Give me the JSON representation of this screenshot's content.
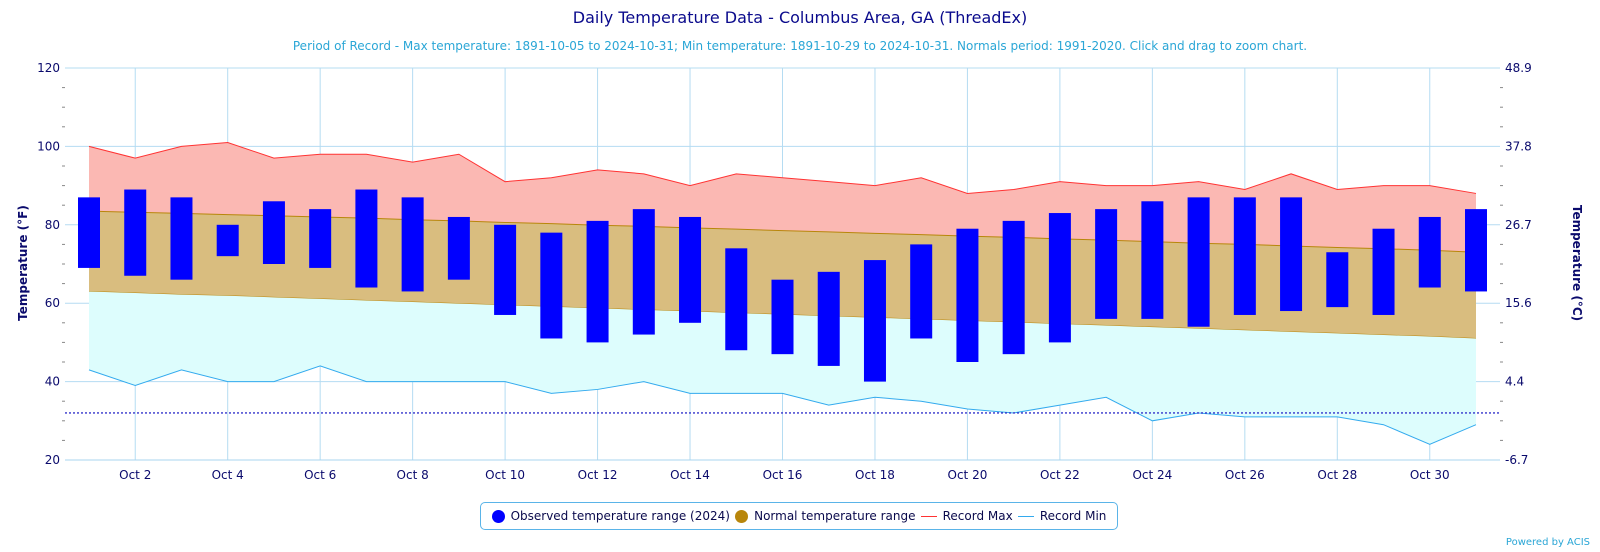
{
  "chart_data": {
    "type": "bar",
    "title": "Daily Temperature Data - Columbus Area, GA (ThreadEx)",
    "subtitle": "Period of Record - Max temperature: 1891-10-05 to 2024-10-31; Min temperature: 1891-10-29 to 2024-10-31. Normals period: 1991-2020. Click and drag to zoom chart.",
    "ylabel": "Temperature (°F)",
    "y2label": "Temperature (°C)",
    "ylim": [
      20,
      120
    ],
    "y_ticks": [
      20,
      40,
      60,
      80,
      100,
      120
    ],
    "y2_ticks": [
      "-6.7",
      "4.4",
      "15.6",
      "26.7",
      "37.8",
      "48.9"
    ],
    "x_tick_labels": [
      "Oct 2",
      "Oct 4",
      "Oct 6",
      "Oct 8",
      "Oct 10",
      "Oct 12",
      "Oct 14",
      "Oct 16",
      "Oct 18",
      "Oct 20",
      "Oct 22",
      "Oct 24",
      "Oct 26",
      "Oct 28",
      "Oct 30"
    ],
    "x_tick_days": [
      2,
      4,
      6,
      8,
      10,
      12,
      14,
      16,
      18,
      20,
      22,
      24,
      26,
      28,
      30
    ],
    "days": [
      1,
      2,
      3,
      4,
      5,
      6,
      7,
      8,
      9,
      10,
      11,
      12,
      13,
      14,
      15,
      16,
      17,
      18,
      19,
      20,
      21,
      22,
      23,
      24,
      25,
      26,
      27,
      28,
      29,
      30,
      31
    ],
    "freezing_line": 32,
    "grid": true,
    "legend_position": "bottom-center",
    "series": [
      {
        "name": "Observed temperature range (2024)",
        "color": "#0000ff",
        "low": [
          69,
          67,
          66,
          72,
          70,
          69,
          64,
          63,
          66,
          57,
          51,
          50,
          52,
          55,
          48,
          47,
          44,
          40,
          51,
          45,
          47,
          50,
          56,
          56,
          54,
          57,
          58,
          59,
          57,
          64,
          63
        ],
        "high": [
          87,
          89,
          87,
          80,
          86,
          84,
          89,
          87,
          82,
          80,
          78,
          81,
          84,
          82,
          74,
          66,
          68,
          71,
          75,
          79,
          81,
          83,
          84,
          86,
          87,
          87,
          87,
          73,
          79,
          82,
          84
        ]
      },
      {
        "name": "Normal temperature range",
        "color": "#b8860b",
        "low": [
          63,
          62.6,
          62.2,
          61.9,
          61.5,
          61.1,
          60.7,
          60.3,
          59.9,
          59.5,
          59.1,
          58.7,
          58.3,
          57.9,
          57.5,
          57.1,
          56.7,
          56.3,
          55.9,
          55.5,
          55.1,
          54.7,
          54.3,
          53.9,
          53.5,
          53.1,
          52.7,
          52.3,
          51.9,
          51.5,
          51
        ],
        "high": [
          83.5,
          83.2,
          82.9,
          82.6,
          82.3,
          82,
          81.7,
          81.3,
          81,
          80.6,
          80.3,
          79.9,
          79.6,
          79.2,
          78.9,
          78.5,
          78.2,
          77.8,
          77.5,
          77.1,
          76.8,
          76.4,
          76.1,
          75.7,
          75.3,
          75,
          74.6,
          74.2,
          73.9,
          73.5,
          73
        ]
      },
      {
        "name": "Record Max",
        "color": "#ff3333",
        "values": [
          100,
          97,
          100,
          101,
          97,
          98,
          98,
          96,
          98,
          91,
          92,
          94,
          93,
          90,
          93,
          92,
          91,
          90,
          92,
          88,
          89,
          91,
          90,
          90,
          91,
          89,
          93,
          89,
          90,
          90,
          88
        ]
      },
      {
        "name": "Record Min",
        "color": "#33aaee",
        "values": [
          43,
          39,
          43,
          40,
          40,
          44,
          40,
          40,
          40,
          40,
          37,
          38,
          40,
          37,
          37,
          37,
          34,
          36,
          35,
          33,
          32,
          34,
          36,
          30,
          32,
          31,
          31,
          31,
          29,
          24,
          29
        ]
      }
    ]
  },
  "legend": {
    "observed": "Observed temperature range (2024)",
    "normal": "Normal temperature range",
    "record_max": "Record Max",
    "record_min": "Record Min"
  },
  "credits": "Powered by ACIS",
  "colors": {
    "record_band": "#fbb8b3",
    "normal_band": "#d9bd7f",
    "min_band": "#ddfdfd",
    "freezing": "#3333cc"
  }
}
